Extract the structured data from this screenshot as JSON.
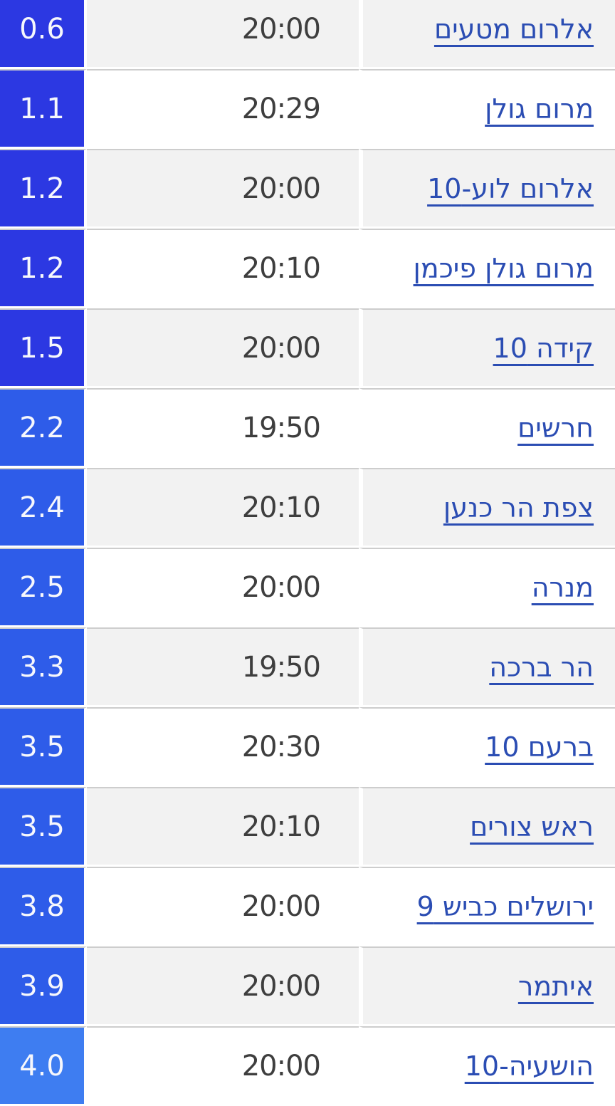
{
  "colors": {
    "amount_tier_deep": "#2c38e2",
    "amount_tier_medium": "#2e5ce9",
    "amount_tier_light": "#3e7df1",
    "amount_text": "#f6f7fc",
    "link": "#2b4db3",
    "time_text": "#3e3e3e",
    "row_alt_bg": "#f2f2f2",
    "row_bg": "#ffffff",
    "divider": "#cdcdcd"
  },
  "table": {
    "rows": [
      {
        "station": "אלרום מטעים",
        "time": "20:00",
        "amount": "0.6",
        "tier": "amount_tier_deep"
      },
      {
        "station": "מרום גולן",
        "time": "20:29",
        "amount": "1.1",
        "tier": "amount_tier_deep"
      },
      {
        "station": "אלרום לוע-10",
        "time": "20:00",
        "amount": "1.2",
        "tier": "amount_tier_deep"
      },
      {
        "station": "מרום גולן פיכמן",
        "time": "20:10",
        "amount": "1.2",
        "tier": "amount_tier_deep"
      },
      {
        "station": "קידה 10",
        "time": "20:00",
        "amount": "1.5",
        "tier": "amount_tier_deep"
      },
      {
        "station": "חרשים",
        "time": "19:50",
        "amount": "2.2",
        "tier": "amount_tier_medium"
      },
      {
        "station": "צפת הר כנען",
        "time": "20:10",
        "amount": "2.4",
        "tier": "amount_tier_medium"
      },
      {
        "station": "מנרה",
        "time": "20:00",
        "amount": "2.5",
        "tier": "amount_tier_medium"
      },
      {
        "station": "הר ברכה",
        "time": "19:50",
        "amount": "3.3",
        "tier": "amount_tier_medium"
      },
      {
        "station": "ברעם 10",
        "time": "20:30",
        "amount": "3.5",
        "tier": "amount_tier_medium"
      },
      {
        "station": "ראש צורים",
        "time": "20:10",
        "amount": "3.5",
        "tier": "amount_tier_medium"
      },
      {
        "station": "ירושלים כביש 9",
        "time": "20:00",
        "amount": "3.8",
        "tier": "amount_tier_medium"
      },
      {
        "station": "איתמר",
        "time": "20:00",
        "amount": "3.9",
        "tier": "amount_tier_medium"
      },
      {
        "station": "הושעיה-10",
        "time": "20:00",
        "amount": "4.0",
        "tier": "amount_tier_light"
      }
    ]
  }
}
